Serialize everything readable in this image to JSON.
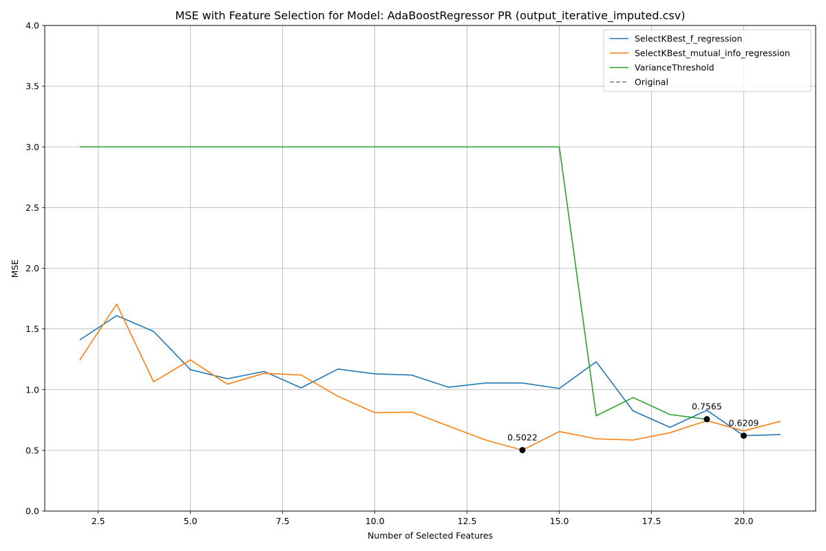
{
  "chart_data": {
    "type": "line",
    "title": "MSE with Feature Selection for Model: AdaBoostRegressor PR (output_iterative_imputed.csv)",
    "xlabel": "Number of Selected Features",
    "ylabel": "MSE",
    "xlim": [
      1.05,
      21.95
    ],
    "ylim": [
      0,
      4
    ],
    "xticks": [
      2.5,
      5.0,
      7.5,
      10.0,
      12.5,
      15.0,
      17.5,
      20.0
    ],
    "xtick_labels": [
      "2.5",
      "5.0",
      "7.5",
      "10.0",
      "12.5",
      "15.0",
      "17.5",
      "20.0"
    ],
    "yticks": [
      0.0,
      0.5,
      1.0,
      1.5,
      2.0,
      2.5,
      3.0,
      3.5,
      4.0
    ],
    "ytick_labels": [
      "0.0",
      "0.5",
      "1.0",
      "1.5",
      "2.0",
      "2.5",
      "3.0",
      "3.5",
      "4.0"
    ],
    "grid": true,
    "legend_position": "top-right",
    "x": [
      2,
      3,
      4,
      5,
      6,
      7,
      8,
      9,
      10,
      11,
      12,
      13,
      14,
      15,
      16,
      17,
      18,
      19,
      20,
      21
    ],
    "series": [
      {
        "name": "SelectKBest_f_regression",
        "color": "#1f77b4",
        "style": "solid",
        "x": [
          2,
          3,
          4,
          5,
          6,
          7,
          8,
          9,
          10,
          11,
          12,
          13,
          14,
          15,
          16,
          17,
          18,
          19,
          20,
          21
        ],
        "values": [
          1.41,
          1.61,
          1.48,
          1.165,
          1.09,
          1.15,
          1.015,
          1.17,
          1.13,
          1.12,
          1.02,
          1.055,
          1.055,
          1.01,
          1.23,
          0.825,
          0.69,
          0.83,
          0.6209,
          0.63
        ]
      },
      {
        "name": "SelectKBest_mutual_info_regression",
        "color": "#ff7f0e",
        "style": "solid",
        "x": [
          2,
          3,
          4,
          5,
          6,
          7,
          8,
          9,
          10,
          11,
          12,
          13,
          14,
          15,
          16,
          17,
          18,
          19,
          20,
          21
        ],
        "values": [
          1.245,
          1.705,
          1.065,
          1.245,
          1.045,
          1.135,
          1.12,
          0.945,
          0.81,
          0.815,
          0.7,
          0.585,
          0.5022,
          0.655,
          0.595,
          0.585,
          0.645,
          0.745,
          0.66,
          0.74
        ]
      },
      {
        "name": "VarianceThreshold",
        "color": "#2ca02c",
        "style": "solid",
        "x": [
          2,
          3,
          4,
          5,
          6,
          7,
          8,
          9,
          10,
          11,
          12,
          13,
          14,
          15,
          16,
          17,
          18,
          19
        ],
        "values": [
          3.0,
          3.0,
          3.0,
          3.0,
          3.0,
          3.0,
          3.0,
          3.0,
          3.0,
          3.0,
          3.0,
          3.0,
          3.0,
          3.0,
          0.785,
          0.935,
          0.795,
          0.7565
        ]
      },
      {
        "name": "Original",
        "color": "#7f7f7f",
        "style": "dashed",
        "x": [],
        "values": []
      }
    ],
    "annotations": [
      {
        "x": 14,
        "y": 0.5022,
        "label": "0.5022"
      },
      {
        "x": 19,
        "y": 0.7565,
        "label": "0.7565"
      },
      {
        "x": 20,
        "y": 0.6209,
        "label": "0.6209"
      }
    ]
  }
}
